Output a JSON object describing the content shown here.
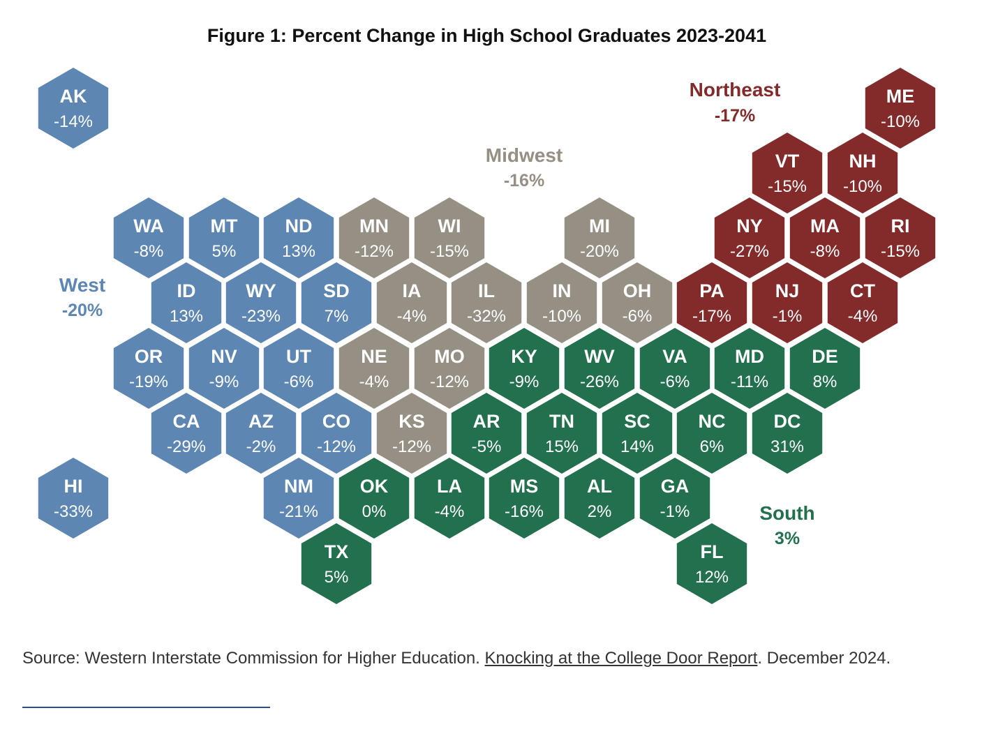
{
  "title": "Figure 1: Percent Change in High School Graduates 2023-2041",
  "colors": {
    "West": "#5d86b2",
    "Midwest": "#968f84",
    "Northeast": "#832b2b",
    "South": "#22704d"
  },
  "regions": [
    {
      "name": "West",
      "value": "-20%"
    },
    {
      "name": "Midwest",
      "value": "-16%"
    },
    {
      "name": "Northeast",
      "value": "-17%"
    },
    {
      "name": "South",
      "value": "3%"
    }
  ],
  "states": [
    {
      "abbr": "AK",
      "value": "-14%",
      "region": "West"
    },
    {
      "abbr": "ME",
      "value": "-10%",
      "region": "Northeast"
    },
    {
      "abbr": "VT",
      "value": "-15%",
      "region": "Northeast"
    },
    {
      "abbr": "NH",
      "value": "-10%",
      "region": "Northeast"
    },
    {
      "abbr": "WA",
      "value": "-8%",
      "region": "West"
    },
    {
      "abbr": "MT",
      "value": "5%",
      "region": "West"
    },
    {
      "abbr": "ND",
      "value": "13%",
      "region": "West"
    },
    {
      "abbr": "MN",
      "value": "-12%",
      "region": "Midwest"
    },
    {
      "abbr": "WI",
      "value": "-15%",
      "region": "Midwest"
    },
    {
      "abbr": "MI",
      "value": "-20%",
      "region": "Midwest"
    },
    {
      "abbr": "NY",
      "value": "-27%",
      "region": "Northeast"
    },
    {
      "abbr": "MA",
      "value": "-8%",
      "region": "Northeast"
    },
    {
      "abbr": "RI",
      "value": "-15%",
      "region": "Northeast"
    },
    {
      "abbr": "ID",
      "value": "13%",
      "region": "West"
    },
    {
      "abbr": "WY",
      "value": "-23%",
      "region": "West"
    },
    {
      "abbr": "SD",
      "value": "7%",
      "region": "West"
    },
    {
      "abbr": "IA",
      "value": "-4%",
      "region": "Midwest"
    },
    {
      "abbr": "IL",
      "value": "-32%",
      "region": "Midwest"
    },
    {
      "abbr": "IN",
      "value": "-10%",
      "region": "Midwest"
    },
    {
      "abbr": "OH",
      "value": "-6%",
      "region": "Midwest"
    },
    {
      "abbr": "PA",
      "value": "-17%",
      "region": "Northeast"
    },
    {
      "abbr": "NJ",
      "value": "-1%",
      "region": "Northeast"
    },
    {
      "abbr": "CT",
      "value": "-4%",
      "region": "Northeast"
    },
    {
      "abbr": "OR",
      "value": "-19%",
      "region": "West"
    },
    {
      "abbr": "NV",
      "value": "-9%",
      "region": "West"
    },
    {
      "abbr": "UT",
      "value": "-6%",
      "region": "West"
    },
    {
      "abbr": "NE",
      "value": "-4%",
      "region": "Midwest"
    },
    {
      "abbr": "MO",
      "value": "-12%",
      "region": "Midwest"
    },
    {
      "abbr": "KY",
      "value": "-9%",
      "region": "South"
    },
    {
      "abbr": "WV",
      "value": "-26%",
      "region": "South"
    },
    {
      "abbr": "VA",
      "value": "-6%",
      "region": "South"
    },
    {
      "abbr": "MD",
      "value": "-11%",
      "region": "South"
    },
    {
      "abbr": "DE",
      "value": "8%",
      "region": "South"
    },
    {
      "abbr": "CA",
      "value": "-29%",
      "region": "West"
    },
    {
      "abbr": "AZ",
      "value": "-2%",
      "region": "West"
    },
    {
      "abbr": "CO",
      "value": "-12%",
      "region": "West"
    },
    {
      "abbr": "KS",
      "value": "-12%",
      "region": "Midwest"
    },
    {
      "abbr": "AR",
      "value": "-5%",
      "region": "South"
    },
    {
      "abbr": "TN",
      "value": "15%",
      "region": "South"
    },
    {
      "abbr": "SC",
      "value": "14%",
      "region": "South"
    },
    {
      "abbr": "NC",
      "value": "6%",
      "region": "South"
    },
    {
      "abbr": "DC",
      "value": "31%",
      "region": "South"
    },
    {
      "abbr": "HI",
      "value": "-33%",
      "region": "West"
    },
    {
      "abbr": "NM",
      "value": "-21%",
      "region": "West"
    },
    {
      "abbr": "OK",
      "value": "0%",
      "region": "South"
    },
    {
      "abbr": "LA",
      "value": "-4%",
      "region": "South"
    },
    {
      "abbr": "MS",
      "value": "-16%",
      "region": "South"
    },
    {
      "abbr": "AL",
      "value": "2%",
      "region": "South"
    },
    {
      "abbr": "GA",
      "value": "-1%",
      "region": "South"
    },
    {
      "abbr": "TX",
      "value": "5%",
      "region": "South"
    },
    {
      "abbr": "FL",
      "value": "12%",
      "region": "South"
    }
  ],
  "source": {
    "prefix": "Source: Western Interstate Commission for Higher Education. ",
    "link": "Knocking at the College Door Report",
    "suffix": ". December 2024."
  }
}
